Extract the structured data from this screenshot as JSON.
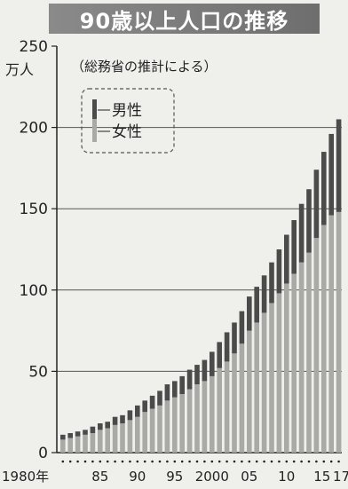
{
  "title": "90歳以上人口の推移",
  "chart_data": {
    "type": "bar",
    "stacked": true,
    "title": "90歳以上人口の推移",
    "source_note": "（総務省の推計による）",
    "y_unit": "万人",
    "ylim": [
      0,
      250
    ],
    "y_ticks": [
      0,
      50,
      100,
      150,
      200,
      250
    ],
    "grid": true,
    "legend_position": "top-left",
    "x": [
      1980,
      1981,
      1982,
      1983,
      1984,
      1985,
      1986,
      1987,
      1988,
      1989,
      1990,
      1991,
      1992,
      1993,
      1994,
      1995,
      1996,
      1997,
      1998,
      1999,
      2000,
      2001,
      2002,
      2003,
      2004,
      2005,
      2006,
      2007,
      2008,
      2009,
      2010,
      2011,
      2012,
      2013,
      2014,
      2015,
      2016,
      2017
    ],
    "x_tick_labels": [
      {
        "year": 1980,
        "label": "1980年"
      },
      {
        "year": 1985,
        "label": "85"
      },
      {
        "year": 1990,
        "label": "90"
      },
      {
        "year": 1995,
        "label": "95"
      },
      {
        "year": 2000,
        "label": "2000"
      },
      {
        "year": 2005,
        "label": "05"
      },
      {
        "year": 2010,
        "label": "10"
      },
      {
        "year": 2015,
        "label": "15"
      },
      {
        "year": 2017,
        "label": "17"
      }
    ],
    "series": [
      {
        "name": "女性",
        "color": "#a9a9a6",
        "values": [
          8,
          9,
          10,
          11,
          12,
          14,
          15,
          17,
          18,
          20,
          22,
          25,
          27,
          29,
          32,
          34,
          36,
          39,
          42,
          44,
          47,
          52,
          56,
          61,
          67,
          75,
          80,
          86,
          92,
          98,
          104,
          110,
          117,
          123,
          132,
          140,
          146,
          148
        ]
      },
      {
        "name": "男性",
        "color": "#4b4b4b",
        "values": [
          3,
          3,
          3,
          3,
          4,
          4,
          4,
          5,
          5,
          6,
          7,
          7,
          8,
          9,
          10,
          10,
          11,
          12,
          12,
          13,
          15,
          16,
          18,
          19,
          20,
          21,
          22,
          23,
          25,
          27,
          30,
          33,
          36,
          39,
          42,
          45,
          50,
          57
        ]
      }
    ]
  }
}
